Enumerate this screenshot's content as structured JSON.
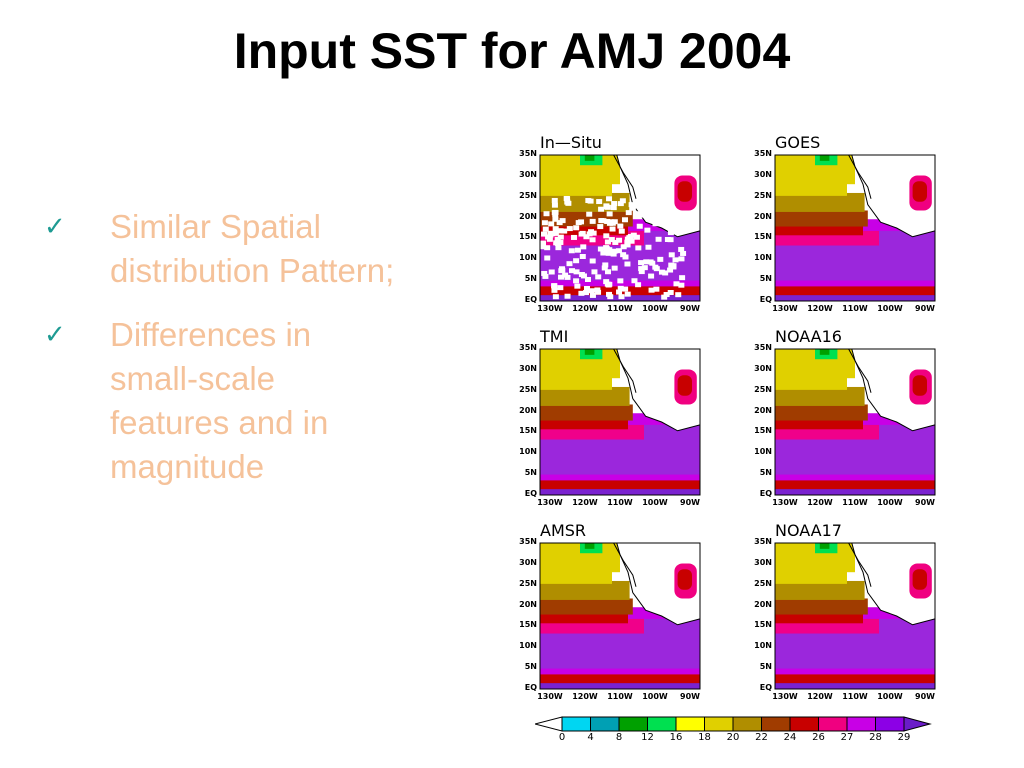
{
  "title": "Input SST for AMJ 2004",
  "bullets": [
    {
      "icon": "check-icon",
      "text": "Similar Spatial distribution Pattern;"
    },
    {
      "icon": "check-icon",
      "text": "Differences in small-scale features and in magnitude"
    }
  ],
  "panels": [
    {
      "label": "In—Situ"
    },
    {
      "label": "GOES"
    },
    {
      "label": "TMI"
    },
    {
      "label": "NOAA16"
    },
    {
      "label": "AMSR"
    },
    {
      "label": "NOAA17"
    }
  ],
  "lat_ticks": [
    "35N",
    "30N",
    "25N",
    "20N",
    "15N",
    "10N",
    "5N",
    "EQ"
  ],
  "lon_ticks": [
    "130W",
    "120W",
    "110W",
    "100W",
    "90W"
  ],
  "colorbar": {
    "ticks": [
      "0",
      "4",
      "8",
      "12",
      "16",
      "18",
      "20",
      "22",
      "24",
      "26",
      "27",
      "28",
      "29"
    ],
    "colors": [
      "#ffffff",
      "#00d6f2",
      "#00a0b4",
      "#00a000",
      "#00e050",
      "#ffff00",
      "#e0d000",
      "#b08e00",
      "#a03c00",
      "#c80000",
      "#f00080",
      "#c800e6",
      "#8c00e6",
      "#6a1cc8"
    ]
  }
}
